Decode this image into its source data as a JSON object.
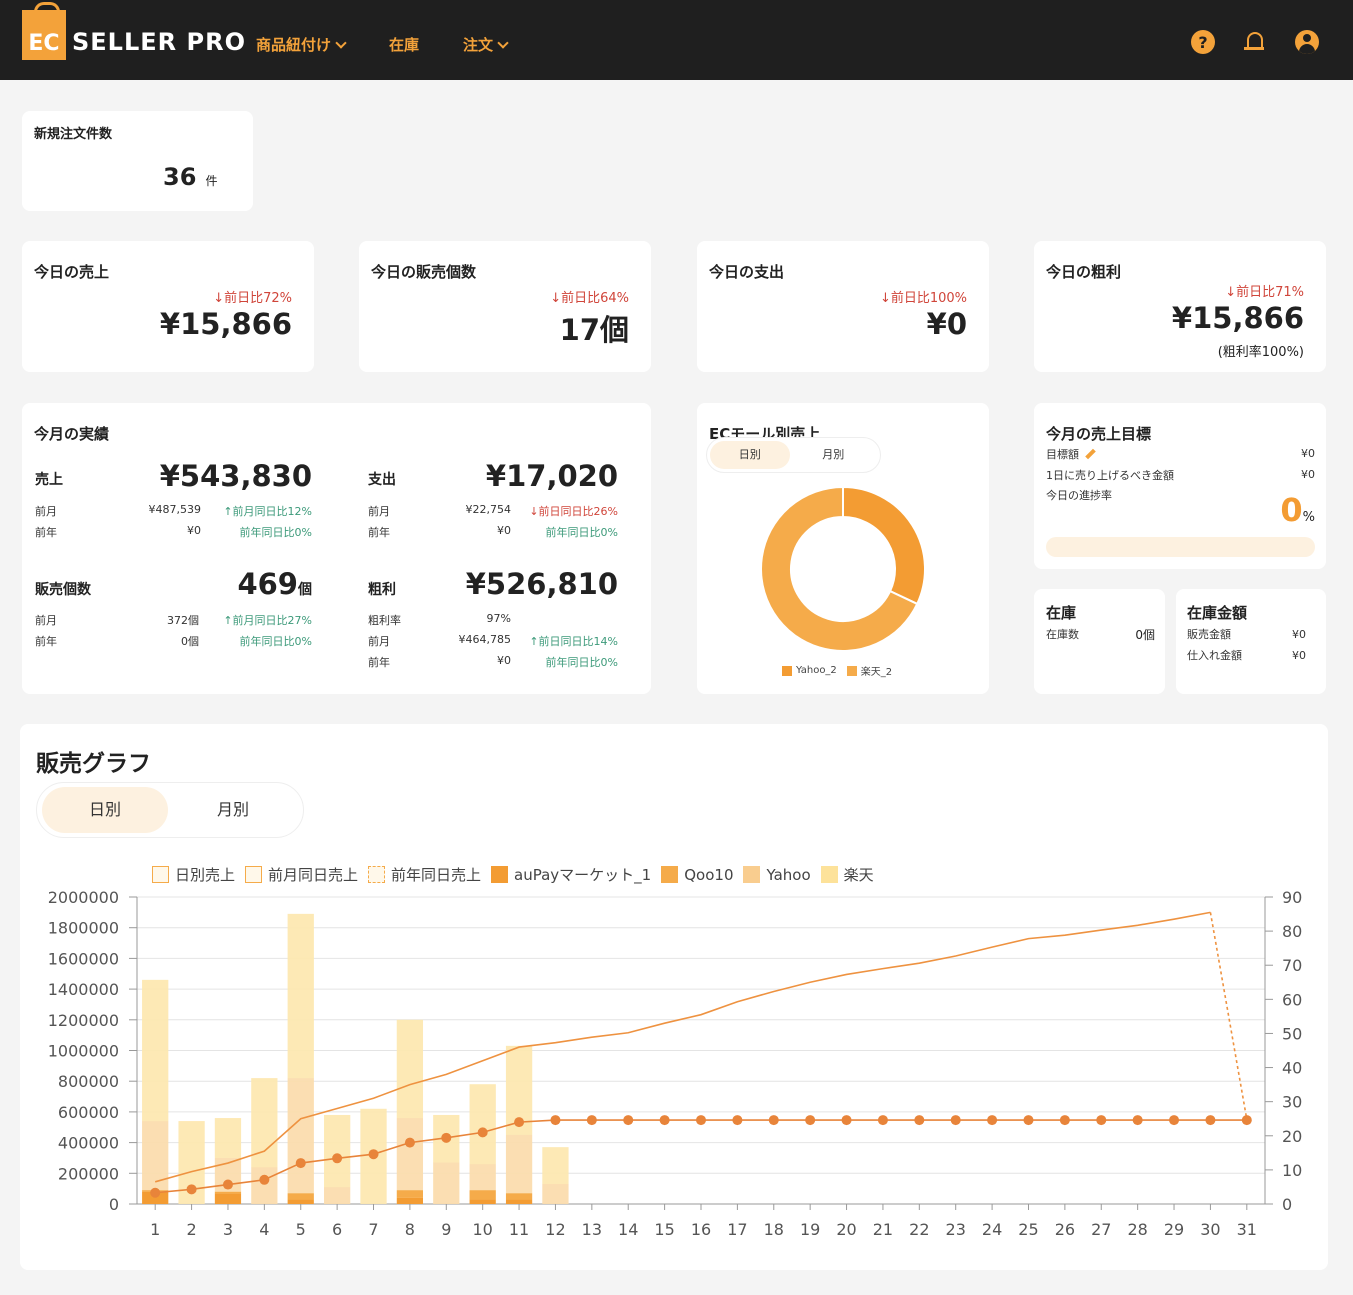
{
  "header": {
    "logo_ec": "EC",
    "logo_text": "SELLER PRO",
    "nav": [
      {
        "label": "商品紐付け"
      },
      {
        "label": "在庫"
      },
      {
        "label": "注文"
      }
    ],
    "help_glyph": "?"
  },
  "new_orders": {
    "title": "新規注文件数",
    "value": "36",
    "unit": "件"
  },
  "today": [
    {
      "title": "今日の売上",
      "change": "↓前日比72%",
      "value": "¥15,866"
    },
    {
      "title": "今日の販売個数",
      "change": "↓前日比64%",
      "value": "17個"
    },
    {
      "title": "今日の支出",
      "change": "↓前日比100%",
      "value": "¥0"
    },
    {
      "title": "今日の粗利",
      "change": "↓前日比71%",
      "value": "¥15,866",
      "note": "(粗利率100%)"
    }
  ],
  "month": {
    "title": "今月の実績",
    "sales": {
      "label": "売上",
      "value": "¥543,830",
      "prev_month_label": "前月",
      "prev_month": "¥487,539",
      "prev_month_change": "↑前月同日比12%",
      "prev_year_label": "前年",
      "prev_year": "¥0",
      "prev_year_change": "前年同日比0%"
    },
    "expense": {
      "label": "支出",
      "value": "¥17,020",
      "prev_month_label": "前月",
      "prev_month": "¥22,754",
      "prev_month_change": "↓前日同日比26%",
      "prev_year_label": "前年",
      "prev_year": "¥0",
      "prev_year_change": "前年同日比0%"
    },
    "count": {
      "label": "販売個数",
      "value": "469",
      "unit": "個",
      "prev_month_label": "前月",
      "prev_month": "372個",
      "prev_month_change": "↑前月同日比27%",
      "prev_year_label": "前年",
      "prev_year": "0個",
      "prev_year_change": "前年同日比0%"
    },
    "profit": {
      "label": "粗利",
      "value": "¥526,810",
      "rate_label": "粗利率",
      "rate": "97%",
      "prev_month_label": "前月",
      "prev_month": "¥464,785",
      "prev_month_change": "↑前日同日比14%",
      "prev_year_label": "前年",
      "prev_year": "¥0",
      "prev_year_change": "前年同日比0%"
    }
  },
  "mall": {
    "title": "ECモール別売上",
    "tabs": [
      "日別",
      "月別"
    ],
    "legend": [
      "Yahoo_2",
      "楽天_2"
    ],
    "slices": [
      {
        "name": "Yahoo_2",
        "fraction": 0.32,
        "color": "#f39c33"
      },
      {
        "name": "楽天_2",
        "fraction": 0.68,
        "color": "#f5ab4a"
      }
    ]
  },
  "goal": {
    "title": "今月の売上目標",
    "target_label": "目標額",
    "target": "¥0",
    "daily_label": "1日に売り上げるべき金額",
    "daily": "¥0",
    "progress_label": "今日の進捗率",
    "progress_value": "0",
    "progress_unit": "%",
    "progress_fraction": 0
  },
  "stock": {
    "title": "在庫",
    "count_label": "在庫数",
    "count": "0個"
  },
  "stock_value": {
    "title": "在庫金額",
    "sales_label": "販売金額",
    "sales": "¥0",
    "cost_label": "仕入れ金額",
    "cost": "¥0"
  },
  "graph": {
    "title": "販売グラフ",
    "tabs": [
      "日別",
      "月別"
    ],
    "legend": [
      {
        "label": "日別売上",
        "style": "outline",
        "color": "#f5ab4a"
      },
      {
        "label": "前月同日売上",
        "style": "outline",
        "color": "#f5ab4a"
      },
      {
        "label": "前年同日売上",
        "style": "dashed",
        "color": "#f5ab4a"
      },
      {
        "label": "auPayマーケット_1",
        "style": "fill",
        "color": "#f39c33"
      },
      {
        "label": "Qoo10",
        "style": "fill",
        "color": "#f5ab4a"
      },
      {
        "label": "Yahoo",
        "style": "fill",
        "color": "#f9cd8f"
      },
      {
        "label": "楽天",
        "style": "fill",
        "color": "#fde29a"
      }
    ]
  },
  "chart_data": {
    "type": "bar",
    "x": [
      1,
      2,
      3,
      4,
      5,
      6,
      7,
      8,
      9,
      10,
      11,
      12,
      13,
      14,
      15,
      16,
      17,
      18,
      19,
      20,
      21,
      22,
      23,
      24,
      25,
      26,
      27,
      28,
      29,
      30,
      31
    ],
    "ylim": [
      0,
      2000000
    ],
    "yticks": [
      0,
      200000,
      400000,
      600000,
      800000,
      1000000,
      1200000,
      1400000,
      1600000,
      1800000,
      2000000
    ],
    "y2lim": [
      0,
      90
    ],
    "y2ticks": [
      0,
      10,
      20,
      30,
      40,
      50,
      60,
      70,
      80,
      90
    ],
    "bar_totals": [
      1460000,
      540000,
      560000,
      820000,
      1890000,
      580000,
      620000,
      1200000,
      580000,
      780000,
      1030000,
      370000,
      0,
      0,
      0,
      0,
      0,
      0,
      0,
      0,
      0,
      0,
      0,
      0,
      0,
      0,
      0,
      0,
      0,
      0,
      0
    ],
    "series": [
      {
        "name": "auPayマーケット_1",
        "values": [
          80000,
          0,
          70000,
          0,
          30000,
          0,
          0,
          40000,
          0,
          30000,
          30000,
          0,
          0,
          0,
          0,
          0,
          0,
          0,
          0,
          0,
          0,
          0,
          0,
          0,
          0,
          0,
          0,
          0,
          0,
          0,
          0
        ]
      },
      {
        "name": "Qoo10",
        "values": [
          10000,
          0,
          10000,
          0,
          40000,
          0,
          0,
          50000,
          0,
          60000,
          40000,
          0,
          0,
          0,
          0,
          0,
          0,
          0,
          0,
          0,
          0,
          0,
          0,
          0,
          0,
          0,
          0,
          0,
          0,
          0,
          0
        ]
      },
      {
        "name": "Yahoo",
        "values": [
          450000,
          0,
          220000,
          240000,
          750000,
          110000,
          0,
          470000,
          270000,
          170000,
          380000,
          130000,
          0,
          0,
          0,
          0,
          0,
          0,
          0,
          0,
          0,
          0,
          0,
          0,
          0,
          0,
          0,
          0,
          0,
          0,
          0
        ]
      },
      {
        "name": "楽天",
        "values": [
          920000,
          540000,
          260000,
          580000,
          1070000,
          470000,
          620000,
          640000,
          310000,
          520000,
          580000,
          240000,
          0,
          0,
          0,
          0,
          0,
          0,
          0,
          0,
          0,
          0,
          0,
          0,
          0,
          0,
          0,
          0,
          0,
          0,
          0
        ]
      },
      {
        "name": "日別売上",
        "axis": "right",
        "values": [
          3.3,
          4.3,
          5.7,
          7.1,
          12,
          13.4,
          14.6,
          18,
          19.4,
          21,
          24,
          24.6,
          24.6,
          24.6,
          24.6,
          24.6,
          24.6,
          24.6,
          24.6,
          24.6,
          24.6,
          24.6,
          24.6,
          24.6,
          24.6,
          24.6,
          24.6,
          24.6,
          24.6,
          24.6,
          24.6
        ]
      },
      {
        "name": "前月同日売上",
        "axis": "right",
        "values": [
          6.5,
          9.5,
          12,
          15.5,
          25,
          28,
          31,
          35,
          38,
          42,
          46,
          47.3,
          48.9,
          50.2,
          53,
          55.5,
          59.3,
          62.3,
          65,
          67.3,
          69,
          70.6,
          72.7,
          75.3,
          77.8,
          78.8,
          80.3,
          81.7,
          83.5,
          85.5,
          24.8
        ]
      }
    ]
  }
}
